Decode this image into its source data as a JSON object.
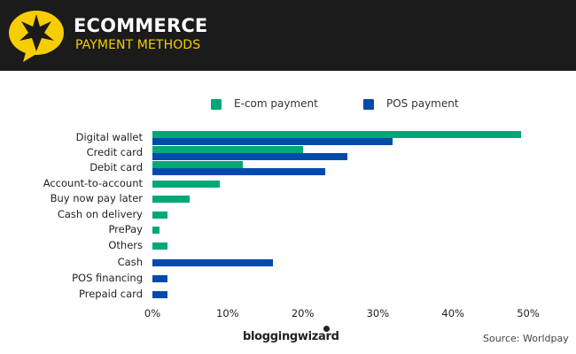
{
  "header": {
    "title": "ECOMMERCE",
    "subtitle": "PAYMENT METHODS",
    "logo_icon": "star-speech-bubble-icon",
    "bg_color": "#1b1b1b",
    "accent_color": "#f6cd00"
  },
  "legend": {
    "items": [
      {
        "label": "E-com payment",
        "color": "#00a878"
      },
      {
        "label": "POS payment",
        "color": "#004aad"
      }
    ]
  },
  "footer": {
    "brand": "bloggingwizard",
    "source": "Source: Worldpay"
  },
  "axis": {
    "ticks": [
      "0%",
      "10%",
      "20%",
      "30%",
      "40%",
      "50%"
    ]
  },
  "chart_data": {
    "type": "bar",
    "orientation": "horizontal",
    "title": "Ecommerce Payment Methods",
    "xlabel": "",
    "ylabel": "",
    "xlim": [
      0,
      50
    ],
    "grid": false,
    "legend_position": "top",
    "categories": [
      "Digital wallet",
      "Credit card",
      "Debit card",
      "Account-to-account",
      "Buy now pay later",
      "Cash on delivery",
      "PrePay",
      "Others",
      "Cash",
      "POS financing",
      "Prepaid card"
    ],
    "series": [
      {
        "name": "E-com payment",
        "color": "#00a878",
        "values": [
          49,
          20,
          12,
          9,
          5,
          2,
          1,
          2,
          null,
          null,
          null
        ]
      },
      {
        "name": "POS payment",
        "color": "#004aad",
        "values": [
          32,
          26,
          23,
          null,
          null,
          null,
          null,
          null,
          16,
          2,
          2
        ]
      }
    ],
    "source": "Source: Worldpay"
  }
}
